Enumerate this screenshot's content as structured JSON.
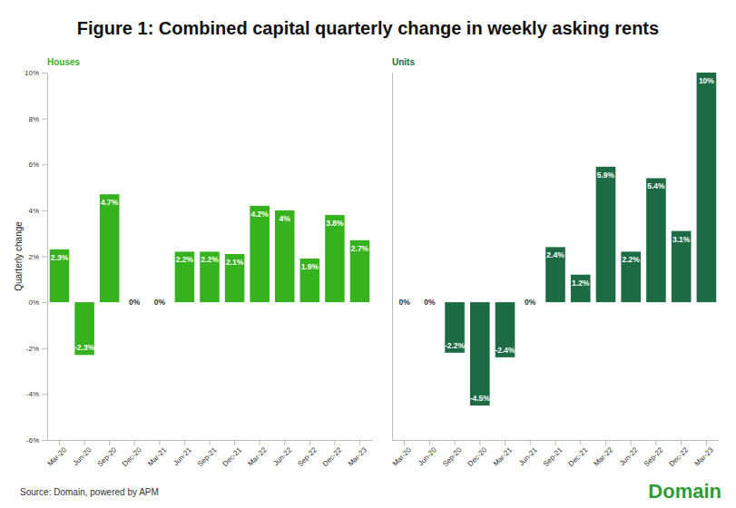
{
  "title": "Figure 1: Combined capital quarterly change in weekly asking rents",
  "source": "Source: Domain, powered by APM",
  "logo": "Domain",
  "chart_data": [
    {
      "type": "bar",
      "subtitle": "Houses",
      "ylabel": "Quarterly change",
      "color": "#37b21f",
      "categories": [
        "Mar-20",
        "Jun-20",
        "Sep-20",
        "Dec-20",
        "Mar-21",
        "Jun-21",
        "Sep-21",
        "Dec-21",
        "Mar-22",
        "Jun-22",
        "Sep-22",
        "Dec-22",
        "Mar-23"
      ],
      "values": [
        2.3,
        -2.3,
        4.7,
        0,
        0,
        2.2,
        2.2,
        2.1,
        4.2,
        4,
        1.9,
        3.8,
        2.7
      ],
      "value_labels": [
        "2.3%",
        "-2.3%",
        "4.7%",
        "0%",
        "0%",
        "2.2%",
        "2.2%",
        "2.1%",
        "4.2%",
        "4%",
        "1.9%",
        "3.8%",
        "2.7%"
      ],
      "data_labels": true,
      "ylim": [
        -6,
        10
      ],
      "yticks": [
        {
          "value": -6,
          "label": "-6%"
        },
        {
          "value": -4,
          "label": "-4%"
        },
        {
          "value": -2,
          "label": "-2%"
        },
        {
          "value": 0,
          "label": "0%"
        },
        {
          "value": 2,
          "label": "2%"
        },
        {
          "value": 4,
          "label": "4%"
        },
        {
          "value": 6,
          "label": "6%"
        },
        {
          "value": 8,
          "label": "8%"
        },
        {
          "value": 10,
          "label": "10%"
        }
      ],
      "grid": false
    },
    {
      "type": "bar",
      "subtitle": "Units",
      "color": "#1c6b45",
      "categories": [
        "Mar-20",
        "Jun-20",
        "Sep-20",
        "Dec-20",
        "Mar-21",
        "Jun-21",
        "Sep-21",
        "Dec-21",
        "Mar-22",
        "Jun-22",
        "Sep-22",
        "Dec-22",
        "Mar-23"
      ],
      "values": [
        0,
        0,
        -2.2,
        -4.5,
        -2.4,
        0,
        2.4,
        1.2,
        5.9,
        2.2,
        5.4,
        3.1,
        10
      ],
      "value_labels": [
        "0%",
        "0%",
        "-2.2%",
        "-4.5%",
        "-2.4%",
        "0%",
        "2.4%",
        "1.2%",
        "5.9%",
        "2.2%",
        "5.4%",
        "3.1%",
        "10%"
      ],
      "data_labels": true,
      "ylim": [
        -6,
        10
      ],
      "tick_labels": "x",
      "grid": false
    }
  ]
}
